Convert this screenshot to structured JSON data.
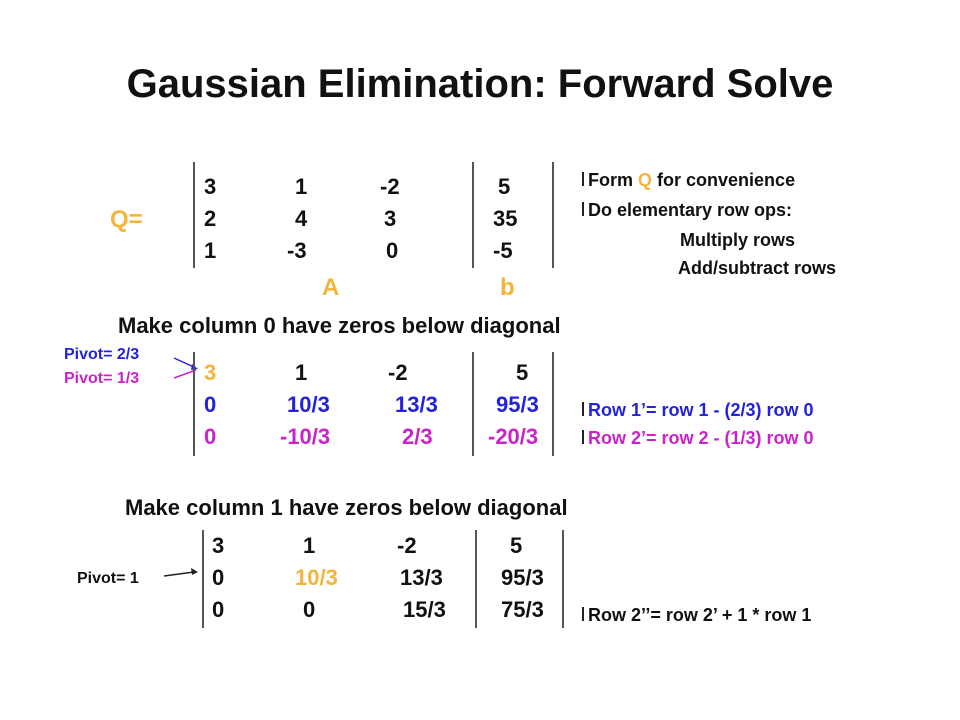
{
  "title": "Gaussian Elimination: Forward Solve",
  "matrix_q": {
    "label": "Q=",
    "rows": [
      [
        "3",
        "1",
        "-2",
        "5"
      ],
      [
        "2",
        "4",
        "3",
        "35"
      ],
      [
        "1",
        "-3",
        "0",
        "-5"
      ]
    ],
    "label_a": "A",
    "label_b": "b"
  },
  "notes1": {
    "line1_prefix": "Form ",
    "line1_q": "Q",
    "line1_suffix": " for convenience",
    "line2": "Do elementary row ops:",
    "line3": "Multiply rows",
    "line4": "Add/subtract rows"
  },
  "step1": {
    "heading": "Make column 0 have zeros below diagonal",
    "pivot1": "Pivot= 2/3",
    "pivot2": "Pivot= 1/3",
    "rows": [
      [
        "3",
        "1",
        "-2",
        "5"
      ],
      [
        "0",
        "10/3",
        "13/3",
        "95/3"
      ],
      [
        "0",
        "-10/3",
        "2/3",
        "-20/3"
      ]
    ],
    "op1": "Row 1’= row 1 - (2/3) row 0",
    "op2": "Row 2’= row 2 - (1/3) row 0"
  },
  "step2": {
    "heading": "Make column 1 have zeros below diagonal",
    "pivot": "Pivot= 1",
    "rows": [
      [
        "3",
        "1",
        "-2",
        "5"
      ],
      [
        "0",
        "10/3",
        "13/3",
        "95/3"
      ],
      [
        "0",
        "0",
        "15/3",
        "75/3"
      ]
    ],
    "op": "Row 2’’= row 2’ + 1 * row 1"
  },
  "colors": {
    "gold": "#f5b43c",
    "blue": "#2222dd",
    "magenta": "#cc22cc"
  }
}
